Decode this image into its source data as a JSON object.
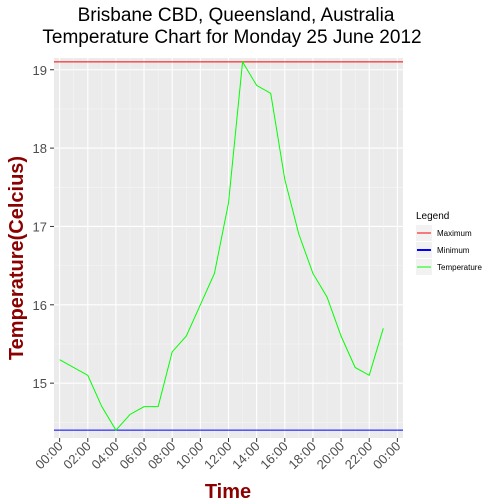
{
  "chart_data": {
    "type": "line",
    "title": [
      "Brisbane CBD, Queensland, Australia",
      "Temperature Chart for Monday 25 June 2012"
    ],
    "xlabel": "Time",
    "ylabel": "Temperature(Celcius)",
    "axis_title_color": "#8b0000",
    "x_tick_labels": [
      "00:00",
      "02:00",
      "04:00",
      "06:00",
      "08:00",
      "10:00",
      "12:00",
      "14:00",
      "16:00",
      "18:00",
      "20:00",
      "22:00",
      "00:00"
    ],
    "xlim": [
      -0.4,
      24.4
    ],
    "ylim": [
      14.3,
      19.15
    ],
    "y_ticks": [
      15,
      16,
      17,
      18,
      19
    ],
    "grid": true,
    "legend": {
      "title": "Legend",
      "position": "right",
      "entries": [
        "Maximum",
        "Minimum",
        "Temperature"
      ]
    },
    "series": [
      {
        "name": "Temperature",
        "color": "#00ff00",
        "x": [
          0,
          2,
          3,
          4,
          5,
          6,
          7,
          8,
          9,
          10,
          11,
          12,
          13,
          14,
          15,
          16,
          17,
          18,
          19,
          20,
          21,
          22,
          23
        ],
        "y": [
          15.3,
          15.1,
          14.7,
          14.4,
          14.6,
          14.7,
          14.7,
          15.4,
          15.6,
          16.0,
          16.4,
          17.3,
          19.1,
          18.8,
          18.7,
          17.6,
          16.9,
          16.4,
          16.1,
          15.6,
          15.2,
          15.1,
          15.7
        ]
      },
      {
        "name": "Maximum",
        "color": "#ff0000",
        "hline": 19.1
      },
      {
        "name": "Minimum",
        "color": "#0000ff",
        "hline": 14.4
      }
    ]
  }
}
